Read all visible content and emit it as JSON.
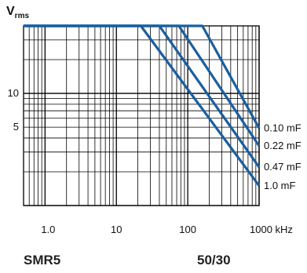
{
  "chart_data": {
    "type": "line",
    "title": "",
    "ylabel": "V",
    "ylabel_sub": "rms",
    "xlabel": "",
    "x_unit": "kHz",
    "x_scale": "log",
    "y_scale": "log",
    "xlim": [
      0.5,
      1000
    ],
    "ylim": [
      1,
      40
    ],
    "x_ticks": [
      {
        "value": 1,
        "label": "1.0"
      },
      {
        "value": 10,
        "label": "10"
      },
      {
        "value": 100,
        "label": "100"
      },
      {
        "value": 1000,
        "label": "1000 kHz"
      }
    ],
    "y_ticks": [
      {
        "value": 10,
        "label": "10"
      },
      {
        "value": 5,
        "label": "5"
      }
    ],
    "grid": true,
    "line_color": "#1a5fa0",
    "series": [
      {
        "name": "0.10 mF",
        "points": [
          [
            0.5,
            40
          ],
          [
            160,
            40
          ],
          [
            1000,
            4.9
          ]
        ]
      },
      {
        "name": "0.22 mF",
        "points": [
          [
            0.5,
            40
          ],
          [
            75,
            40
          ],
          [
            1000,
            3.4
          ]
        ]
      },
      {
        "name": "0.47 mF",
        "points": [
          [
            0.5,
            40
          ],
          [
            40,
            40
          ],
          [
            1000,
            2.2
          ]
        ]
      },
      {
        "name": "1.0 mF",
        "points": [
          [
            0.5,
            40
          ],
          [
            22,
            40
          ],
          [
            1000,
            1.5
          ]
        ]
      }
    ]
  },
  "footer": {
    "model": "SMR5",
    "rating": "50/30"
  }
}
